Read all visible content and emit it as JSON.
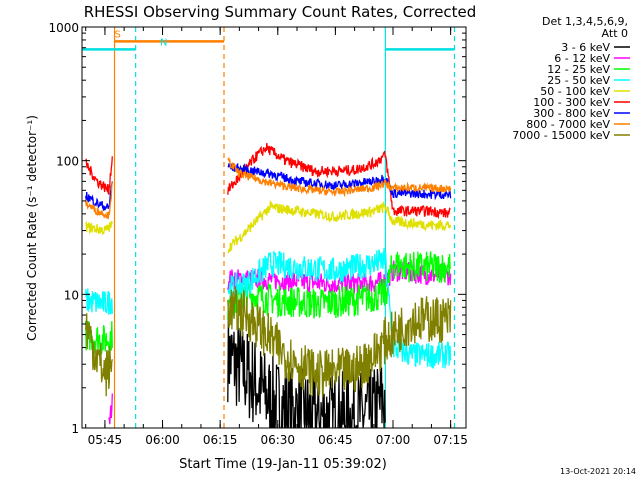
{
  "chart_data": {
    "type": "line",
    "title": "RHESSI Observing Summary Count Rates, Corrected",
    "ylabel": "Corrected Count Rate (s⁻¹ detector⁻¹)",
    "xlabel": "Start Time (19-Jan-11 05:39:02)",
    "y_scale": "log",
    "ylim": [
      1,
      1000
    ],
    "y_ticks": [
      {
        "value": 1,
        "label": "1"
      },
      {
        "value": 10,
        "label": "10"
      },
      {
        "value": 100,
        "label": "100"
      },
      {
        "value": 1000,
        "label": "1000"
      }
    ],
    "xlim": [
      "05:39:02",
      "07:19:00"
    ],
    "x_ticks": [
      "05:45",
      "06:00",
      "06:15",
      "06:30",
      "06:45",
      "07:00",
      "07:15"
    ],
    "legend_header": [
      "Det 1,3,4,5,6,9,",
      "Att 0"
    ],
    "legend_position": "right",
    "footer": "13-Oct-2021 20:14",
    "flags": [
      {
        "label": "S",
        "color": "#ff7f00",
        "start": "05:47:30",
        "end": "06:16:00",
        "level": 780
      },
      {
        "label": "N",
        "color": "#00e0e0",
        "start": "05:39:02",
        "end": "05:53:00",
        "level": 680
      },
      {
        "label": "",
        "color": "#00e0e0",
        "start": "06:58:00",
        "end": "07:16:00",
        "level": 680
      }
    ],
    "markers": [
      {
        "time": "05:47:30",
        "color": "#ff7f00",
        "style": "solid"
      },
      {
        "time": "05:53:00",
        "color": "#00e0e0",
        "style": "dashed"
      },
      {
        "time": "06:16:00",
        "color": "#ff7f00",
        "style": "dashed"
      },
      {
        "time": "06:58:00",
        "color": "#00e0e0",
        "style": "solid"
      },
      {
        "time": "07:16:00",
        "color": "#00e0e0",
        "style": "dashed"
      }
    ],
    "series": [
      {
        "name": "3 - 6 keV",
        "color": "#000000",
        "noise": 0.35,
        "points": [
          [
            "06:17",
            3.5
          ],
          [
            "06:24",
            2.2
          ],
          [
            "06:28",
            1.6
          ],
          [
            "06:34",
            1.3
          ],
          [
            "06:40",
            1.2
          ],
          [
            "06:50",
            1.2
          ],
          [
            "06:55",
            1.3
          ],
          [
            "06:58",
            1.7
          ]
        ]
      },
      {
        "name": "6 - 12 keV",
        "color": "#ff00ff",
        "noise": 0.08,
        "points": [
          [
            "05:46",
            1.0
          ],
          [
            "05:47",
            1.6
          ],
          [
            "06:17",
            13
          ],
          [
            "06:25",
            13
          ],
          [
            "06:35",
            12.5
          ],
          [
            "06:45",
            12
          ],
          [
            "06:55",
            12.2
          ],
          [
            "06:58",
            12.5
          ],
          [
            "07:00",
            15
          ],
          [
            "07:05",
            14.5
          ],
          [
            "07:10",
            14
          ],
          [
            "07:15",
            14
          ]
        ]
      },
      {
        "name": "12 - 25 keV",
        "color": "#00ff00",
        "noise": 0.12,
        "points": [
          [
            "05:40",
            5
          ],
          [
            "05:45",
            4.5
          ],
          [
            "05:47",
            5
          ],
          [
            "06:17",
            8
          ],
          [
            "06:22",
            10
          ],
          [
            "06:30",
            9
          ],
          [
            "06:40",
            8.5
          ],
          [
            "06:50",
            9
          ],
          [
            "06:58",
            10
          ],
          [
            "07:00",
            17
          ],
          [
            "07:05",
            16
          ],
          [
            "07:10",
            16
          ],
          [
            "07:15",
            16
          ]
        ]
      },
      {
        "name": "25 - 50 keV",
        "color": "#00ffff",
        "noise": 0.1,
        "points": [
          [
            "05:40",
            9
          ],
          [
            "05:45",
            8.5
          ],
          [
            "05:47",
            9
          ],
          [
            "06:17",
            11
          ],
          [
            "06:22",
            12
          ],
          [
            "06:28",
            17
          ],
          [
            "06:35",
            16
          ],
          [
            "06:45",
            15
          ],
          [
            "06:55",
            17
          ],
          [
            "06:58",
            18
          ],
          [
            "07:00",
            4
          ],
          [
            "07:05",
            3.5
          ],
          [
            "07:10",
            3.5
          ],
          [
            "07:15",
            3.5
          ]
        ]
      },
      {
        "name": "50 - 100 keV",
        "color": "#e0e000",
        "noise": 0.04,
        "points": [
          [
            "05:40",
            32
          ],
          [
            "05:45",
            30
          ],
          [
            "05:47",
            33
          ],
          [
            "06:17",
            22
          ],
          [
            "06:22",
            30
          ],
          [
            "06:28",
            45
          ],
          [
            "06:35",
            42
          ],
          [
            "06:45",
            38
          ],
          [
            "06:55",
            42
          ],
          [
            "06:58",
            45
          ],
          [
            "07:00",
            35
          ],
          [
            "07:05",
            34
          ],
          [
            "07:10",
            33
          ],
          [
            "07:15",
            33
          ]
        ]
      },
      {
        "name": "100 - 300 keV",
        "color": "#ff0000",
        "noise": 0.04,
        "points": [
          [
            "05:40",
            95
          ],
          [
            "05:43",
            70
          ],
          [
            "05:46",
            60
          ],
          [
            "05:47",
            110
          ],
          [
            "06:17",
            60
          ],
          [
            "06:20",
            75
          ],
          [
            "06:24",
            105
          ],
          [
            "06:27",
            125
          ],
          [
            "06:32",
            100
          ],
          [
            "06:40",
            83
          ],
          [
            "06:50",
            85
          ],
          [
            "06:55",
            95
          ],
          [
            "06:58",
            110
          ],
          [
            "07:00",
            42
          ],
          [
            "07:05",
            42
          ],
          [
            "07:10",
            42
          ],
          [
            "07:15",
            40
          ]
        ]
      },
      {
        "name": "300 - 800 keV",
        "color": "#0000ff",
        "noise": 0.035,
        "points": [
          [
            "05:40",
            55
          ],
          [
            "05:43",
            48
          ],
          [
            "05:46",
            44
          ],
          [
            "05:47",
            75
          ],
          [
            "06:17",
            90
          ],
          [
            "06:22",
            85
          ],
          [
            "06:28",
            80
          ],
          [
            "06:35",
            70
          ],
          [
            "06:45",
            65
          ],
          [
            "06:55",
            70
          ],
          [
            "06:58",
            75
          ],
          [
            "07:00",
            57
          ],
          [
            "07:05",
            57
          ],
          [
            "07:10",
            56
          ],
          [
            "07:15",
            56
          ]
        ]
      },
      {
        "name": "800 - 7000 keV",
        "color": "#ff7f00",
        "noise": 0.03,
        "points": [
          [
            "05:40",
            48
          ],
          [
            "05:43",
            42
          ],
          [
            "05:46",
            39
          ],
          [
            "05:47",
            68
          ],
          [
            "06:17",
            100
          ],
          [
            "06:20",
            80
          ],
          [
            "06:28",
            68
          ],
          [
            "06:35",
            62
          ],
          [
            "06:45",
            58
          ],
          [
            "06:55",
            63
          ],
          [
            "06:58",
            68
          ],
          [
            "07:00",
            62
          ],
          [
            "07:05",
            63
          ],
          [
            "07:10",
            62
          ],
          [
            "07:15",
            62
          ]
        ]
      },
      {
        "name": "7000 - 15000 keV",
        "color": "#808000",
        "noise": 0.18,
        "points": [
          [
            "05:40",
            6
          ],
          [
            "05:42",
            4
          ],
          [
            "05:45",
            2.5
          ],
          [
            "05:47",
            3
          ],
          [
            "06:17",
            8
          ],
          [
            "06:22",
            7
          ],
          [
            "06:27",
            5
          ],
          [
            "06:32",
            3.5
          ],
          [
            "06:40",
            2.5
          ],
          [
            "06:50",
            2.7
          ],
          [
            "06:55",
            3.5
          ],
          [
            "06:58",
            4.5
          ],
          [
            "07:00",
            5
          ],
          [
            "07:05",
            6.5
          ],
          [
            "07:10",
            6.5
          ],
          [
            "07:15",
            6.5
          ]
        ]
      }
    ]
  }
}
